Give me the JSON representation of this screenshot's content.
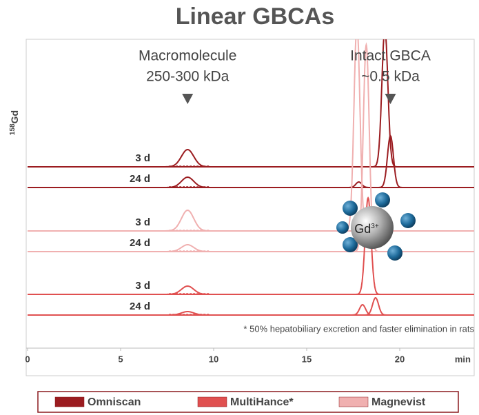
{
  "chart_data": {
    "type": "chromatogram",
    "title": "Linear GBCAs",
    "ylabel_mass": "158",
    "ylabel_element": "Gd",
    "xlabel": "min",
    "xlim": [
      0,
      24
    ],
    "xticks": [
      0,
      5,
      10,
      15,
      20
    ],
    "annotations": [
      {
        "lines": [
          "Macromolecule",
          "250-300 kDa"
        ],
        "x": 8.6
      },
      {
        "lines": [
          "Intact GBCA",
          "~0.5 kDa"
        ],
        "x": 19.5
      }
    ],
    "note": "* 50% hepatobiliary excretion and faster elimination in rats",
    "molecule_label": "Gd",
    "molecule_charge": "3+",
    "series": [
      {
        "name": "Omniscan",
        "color": "#9b1c20",
        "traces": [
          {
            "label": "3 d",
            "peaks": [
              {
                "x": 8.6,
                "height": 25
              },
              {
                "x": 19.2,
                "height": 200
              }
            ]
          },
          {
            "label": "24 d",
            "peaks": [
              {
                "x": 8.6,
                "height": 15
              },
              {
                "x": 17.8,
                "height": 8
              },
              {
                "x": 19.5,
                "height": 75
              }
            ]
          }
        ]
      },
      {
        "name": "MultiHance*",
        "color": "#e05050",
        "traces": [
          {
            "label": "3 d",
            "peaks": [
              {
                "x": 8.6,
                "height": 12
              },
              {
                "x": 18.3,
                "height": 140
              }
            ]
          },
          {
            "label": "24 d",
            "peaks": [
              {
                "x": 8.6,
                "height": 5
              },
              {
                "x": 18.0,
                "height": 15
              },
              {
                "x": 18.7,
                "height": 25
              }
            ]
          }
        ]
      },
      {
        "name": "Magnevist",
        "color": "#f0b0b0",
        "traces": [
          {
            "label": "3 d",
            "peaks": [
              {
                "x": 8.6,
                "height": 30
              },
              {
                "x": 17.7,
                "height": 300
              }
            ]
          },
          {
            "label": "24 d",
            "peaks": [
              {
                "x": 8.6,
                "height": 10
              },
              {
                "x": 18.2,
                "height": 300
              }
            ]
          }
        ]
      }
    ]
  }
}
